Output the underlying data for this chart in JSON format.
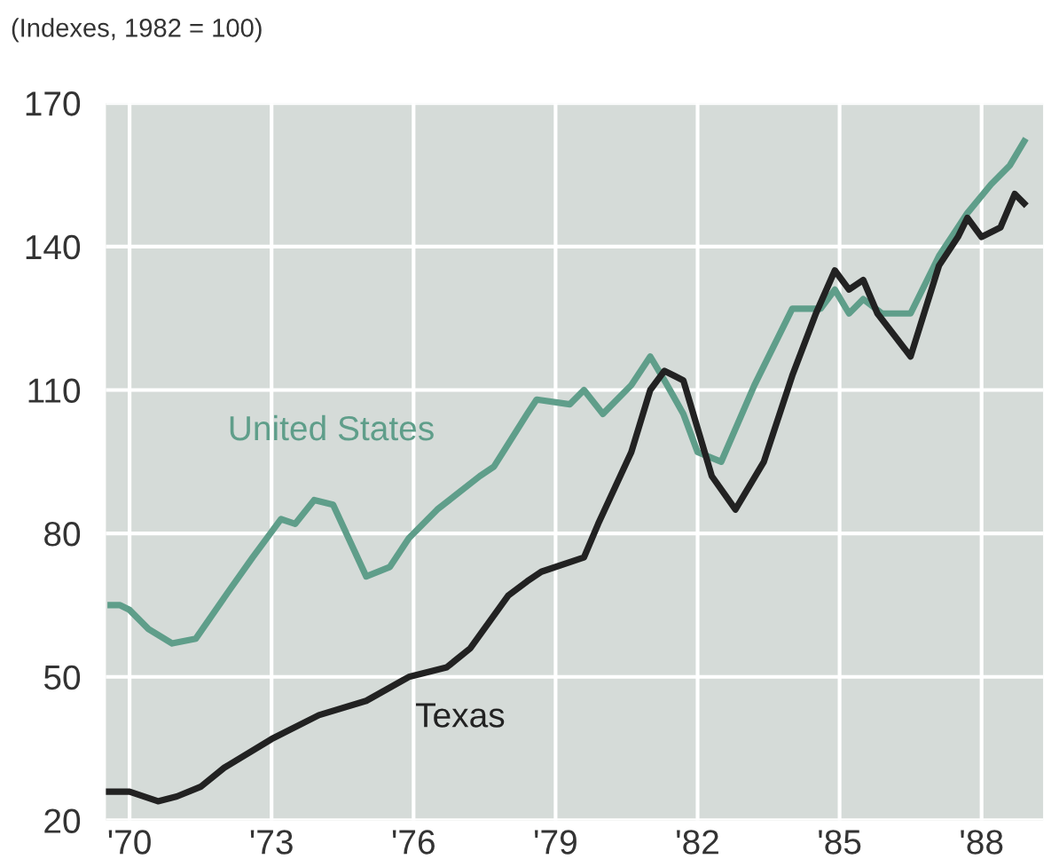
{
  "chart_data": {
    "type": "line",
    "ylabel": "(Indexes, 1982 = 100)",
    "xlim": [
      1969.5,
      1989.3
    ],
    "ylim": [
      20,
      170
    ],
    "xticks": [
      {
        "value": 1970,
        "label": "'70"
      },
      {
        "value": 1973,
        "label": "'73"
      },
      {
        "value": 1976,
        "label": "'76"
      },
      {
        "value": 1979,
        "label": "'79"
      },
      {
        "value": 1982,
        "label": "'82"
      },
      {
        "value": 1985,
        "label": "'85"
      },
      {
        "value": 1988,
        "label": "'88"
      }
    ],
    "yticks": [
      20,
      50,
      80,
      110,
      140,
      170
    ],
    "grid": true,
    "legend": false,
    "series": [
      {
        "name": "United States",
        "color": "#5f9e8a",
        "x": [
          1969.6,
          1969.8,
          1970.0,
          1970.4,
          1970.9,
          1971.4,
          1972.1,
          1972.6,
          1973.2,
          1973.5,
          1973.9,
          1974.3,
          1975.0,
          1975.5,
          1975.9,
          1976.5,
          1977.4,
          1977.7,
          1978.4,
          1978.6,
          1979.3,
          1979.6,
          1980.0,
          1980.6,
          1981.0,
          1981.3,
          1981.7,
          1982.0,
          1982.5,
          1983.2,
          1984.0,
          1984.6,
          1984.9,
          1985.2,
          1985.5,
          1985.9,
          1986.5,
          1987.1,
          1987.7,
          1988.2,
          1988.6,
          1988.9
        ],
        "values": [
          65,
          65,
          64,
          60,
          57,
          58,
          68,
          75,
          83,
          82,
          87,
          86,
          71,
          73,
          79,
          85,
          92,
          94,
          105,
          108,
          107,
          110,
          105,
          111,
          117,
          112,
          105,
          97,
          95,
          111,
          127,
          127,
          131,
          126,
          129,
          126,
          126,
          138,
          147,
          153,
          157,
          162
        ]
      },
      {
        "name": "Texas",
        "color": "#222222",
        "x": [
          1969.5,
          1970.0,
          1970.6,
          1971.0,
          1971.5,
          1972.0,
          1973.0,
          1974.0,
          1975.0,
          1975.9,
          1976.7,
          1977.2,
          1978.0,
          1978.4,
          1978.7,
          1979.6,
          1979.9,
          1980.6,
          1981.0,
          1981.3,
          1981.7,
          1982.3,
          1982.8,
          1983.4,
          1984.0,
          1984.5,
          1984.9,
          1985.2,
          1985.5,
          1985.8,
          1986.5,
          1987.1,
          1987.5,
          1987.7,
          1988.0,
          1988.4,
          1988.7,
          1988.9
        ],
        "values": [
          26,
          26,
          24,
          25,
          27,
          31,
          37,
          42,
          45,
          50,
          52,
          56,
          67,
          70,
          72,
          75,
          82,
          97,
          110,
          114,
          112,
          92,
          85,
          95,
          113,
          126,
          135,
          131,
          133,
          126,
          117,
          136,
          142,
          146,
          142,
          144,
          151,
          149
        ]
      }
    ]
  }
}
